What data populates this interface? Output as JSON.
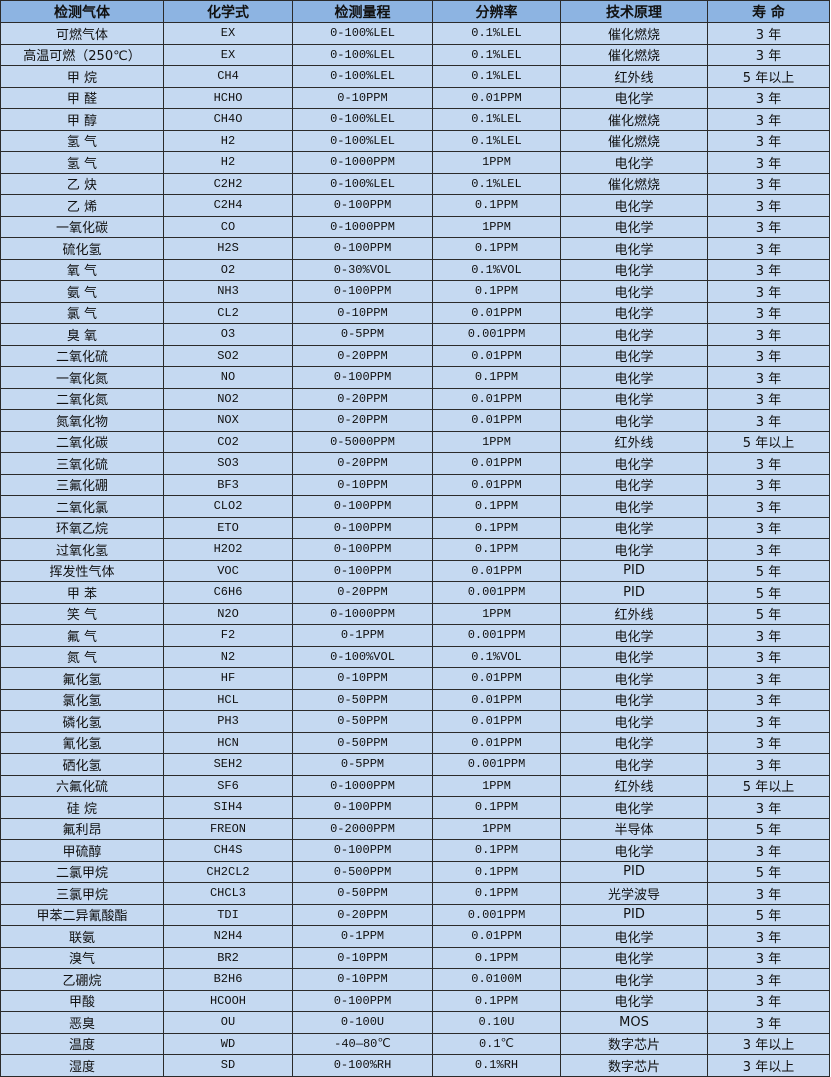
{
  "colors": {
    "header_bg": "#8db4e2",
    "row_bg": "#c5d9f1",
    "border": "#2b2b2b"
  },
  "table": {
    "headers": [
      "检测气体",
      "化学式",
      "检测量程",
      "分辨率",
      "技术原理",
      "寿 命"
    ],
    "rows": [
      [
        "可燃气体",
        "EX",
        "0-100%LEL",
        "0.1%LEL",
        "催化燃烧",
        "3 年"
      ],
      [
        "高温可燃（250℃）",
        "EX",
        "0-100%LEL",
        "0.1%LEL",
        "催化燃烧",
        "3 年"
      ],
      [
        "甲 烷",
        "CH4",
        "0-100%LEL",
        "0.1%LEL",
        "红外线",
        "5 年以上"
      ],
      [
        "甲 醛",
        "HCHO",
        "0-10PPM",
        "0.01PPM",
        "电化学",
        "3 年"
      ],
      [
        "甲 醇",
        "CH4O",
        "0-100%LEL",
        "0.1%LEL",
        "催化燃烧",
        "3 年"
      ],
      [
        "氢 气",
        "H2",
        "0-100%LEL",
        "0.1%LEL",
        "催化燃烧",
        "3 年"
      ],
      [
        "氢 气",
        "H2",
        "0-1000PPM",
        "1PPM",
        "电化学",
        "3 年"
      ],
      [
        "乙 炔",
        "C2H2",
        "0-100%LEL",
        "0.1%LEL",
        "催化燃烧",
        "3 年"
      ],
      [
        "乙 烯",
        "C2H4",
        "0-100PPM",
        "0.1PPM",
        "电化学",
        "3 年"
      ],
      [
        "一氧化碳",
        "CO",
        "0-1000PPM",
        "1PPM",
        "电化学",
        "3 年"
      ],
      [
        "硫化氢",
        "H2S",
        "0-100PPM",
        "0.1PPM",
        "电化学",
        "3 年"
      ],
      [
        "氧 气",
        "O2",
        "0-30%VOL",
        "0.1%VOL",
        "电化学",
        "3 年"
      ],
      [
        "氨 气",
        "NH3",
        "0-100PPM",
        "0.1PPM",
        "电化学",
        "3 年"
      ],
      [
        "氯 气",
        "CL2",
        "0-10PPM",
        "0.01PPM",
        "电化学",
        "3 年"
      ],
      [
        "臭 氧",
        "O3",
        "0-5PPM",
        "0.001PPM",
        "电化学",
        "3 年"
      ],
      [
        "二氧化硫",
        "SO2",
        "0-20PPM",
        "0.01PPM",
        "电化学",
        "3 年"
      ],
      [
        "一氧化氮",
        "NO",
        "0-100PPM",
        "0.1PPM",
        "电化学",
        "3 年"
      ],
      [
        "二氧化氮",
        "NO2",
        "0-20PPM",
        "0.01PPM",
        "电化学",
        "3 年"
      ],
      [
        "氮氧化物",
        "NOX",
        "0-20PPM",
        "0.01PPM",
        "电化学",
        "3 年"
      ],
      [
        "二氧化碳",
        "CO2",
        "0-5000PPM",
        "1PPM",
        "红外线",
        "5 年以上"
      ],
      [
        "三氧化硫",
        "SO3",
        "0-20PPM",
        "0.01PPM",
        "电化学",
        "3 年"
      ],
      [
        "三氟化硼",
        "BF3",
        "0-10PPM",
        "0.01PPM",
        "电化学",
        "3 年"
      ],
      [
        "二氧化氯",
        "CLO2",
        "0-100PPM",
        "0.1PPM",
        "电化学",
        "3 年"
      ],
      [
        "环氧乙烷",
        "ETO",
        "0-100PPM",
        "0.1PPM",
        "电化学",
        "3 年"
      ],
      [
        "过氧化氢",
        "H2O2",
        "0-100PPM",
        "0.1PPM",
        "电化学",
        "3 年"
      ],
      [
        "挥发性气体",
        "VOC",
        "0-100PPM",
        "0.01PPM",
        "PID",
        "5 年"
      ],
      [
        "甲 苯",
        "C6H6",
        "0-20PPM",
        "0.001PPM",
        "PID",
        "5 年"
      ],
      [
        "笑 气",
        "N2O",
        "0-1000PPM",
        "1PPM",
        "红外线",
        "5 年"
      ],
      [
        "氟 气",
        "F2",
        "0-1PPM",
        "0.001PPM",
        "电化学",
        "3 年"
      ],
      [
        "氮 气",
        "N2",
        "0-100%VOL",
        "0.1%VOL",
        "电化学",
        "3 年"
      ],
      [
        "氟化氢",
        "HF",
        "0-10PPM",
        "0.01PPM",
        "电化学",
        "3 年"
      ],
      [
        "氯化氢",
        "HCL",
        "0-50PPM",
        "0.01PPM",
        "电化学",
        "3 年"
      ],
      [
        "磷化氢",
        "PH3",
        "0-50PPM",
        "0.01PPM",
        "电化学",
        "3 年"
      ],
      [
        "氰化氢",
        "HCN",
        "0-50PPM",
        "0.01PPM",
        "电化学",
        "3 年"
      ],
      [
        "硒化氢",
        "SEH2",
        "0-5PPM",
        "0.001PPM",
        "电化学",
        "3 年"
      ],
      [
        "六氟化硫",
        "SF6",
        "0-1000PPM",
        "1PPM",
        "红外线",
        "5 年以上"
      ],
      [
        "硅 烷",
        "SIH4",
        "0-100PPM",
        "0.1PPM",
        "电化学",
        "3 年"
      ],
      [
        "氟利昂",
        "FREON",
        "0-2000PPM",
        "1PPM",
        "半导体",
        "5 年"
      ],
      [
        "甲硫醇",
        "CH4S",
        "0-100PPM",
        "0.1PPM",
        "电化学",
        "3 年"
      ],
      [
        "二氯甲烷",
        "CH2CL2",
        "0-500PPM",
        "0.1PPM",
        "PID",
        "5 年"
      ],
      [
        "三氯甲烷",
        "CHCL3",
        "0-50PPM",
        "0.1PPM",
        "光学波导",
        "3 年"
      ],
      [
        "甲苯二异氰酸酯",
        "TDI",
        "0-20PPM",
        "0.001PPM",
        "PID",
        "5 年"
      ],
      [
        "联氨",
        "N2H4",
        "0-1PPM",
        "0.01PPM",
        "电化学",
        "3 年"
      ],
      [
        "溴气",
        "BR2",
        "0-10PPM",
        "0.1PPM",
        "电化学",
        "3 年"
      ],
      [
        "乙硼烷",
        "B2H6",
        "0-10PPM",
        "0.0100M",
        "电化学",
        "3 年"
      ],
      [
        "甲酸",
        "HCOOH",
        "0-100PPM",
        "0.1PPM",
        "电化学",
        "3 年"
      ],
      [
        "恶臭",
        "OU",
        "0-100U",
        "0.10U",
        "MOS",
        "3 年"
      ],
      [
        "温度",
        "WD",
        "-40—80℃",
        "0.1℃",
        "数字芯片",
        "3 年以上"
      ],
      [
        "湿度",
        "SD",
        "0-100%RH",
        "0.1%RH",
        "数字芯片",
        "3 年以上"
      ]
    ]
  }
}
